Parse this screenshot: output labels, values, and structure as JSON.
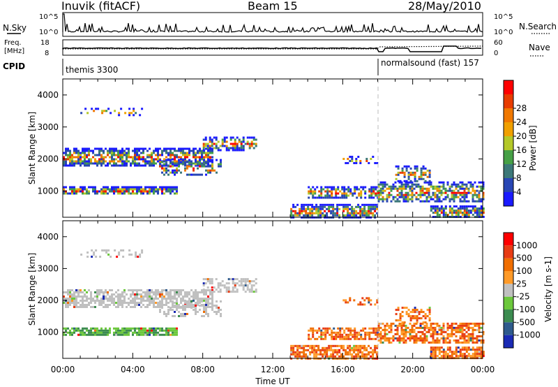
{
  "header": {
    "station": "Inuvik (fitACF)",
    "beam": "Beam 15",
    "date": "28/May/2010"
  },
  "nsky_panel": {
    "label": "N.Sky",
    "ticks": [
      "10^5",
      "10^0"
    ],
    "right_label": "N.Search",
    "right_ticks": [
      "10^5",
      "10^0"
    ]
  },
  "freq_panel": {
    "label_line1": "Freq.",
    "label_line2": "[MHz]",
    "ticks": [
      "18",
      "8"
    ],
    "right_label": "Nave",
    "right_ticks": [
      "60",
      "0"
    ]
  },
  "cpid_panel": {
    "label": "CPID",
    "segments": [
      {
        "text": "themis 3300",
        "start_hour": 0
      },
      {
        "text": "normalsound (fast) 157",
        "start_hour": 18
      }
    ]
  },
  "chart_data": [
    {
      "type": "heatmap",
      "name": "power-panel",
      "xlabel": "",
      "ylabel": "Slant Range [km]",
      "xlim": [
        0,
        24
      ],
      "ylim": [
        180,
        4500
      ],
      "yticks": [
        1000,
        2000,
        3000,
        4000
      ],
      "colorbar": {
        "label": "Power [dB]",
        "ticks": [
          "4",
          "8",
          "12",
          "16",
          "20",
          "24",
          "28"
        ],
        "colors": [
          "#1a1aff",
          "#2846b4",
          "#3c7878",
          "#46a046",
          "#b4c828",
          "#f0a000",
          "#f07800",
          "#e83c00",
          "#ff0000"
        ]
      }
    },
    {
      "type": "heatmap",
      "name": "velocity-panel",
      "xlabel": "Time UT",
      "ylabel": "Slant Range [km]",
      "xlim": [
        0,
        24
      ],
      "ylim": [
        180,
        4500
      ],
      "yticks": [
        1000,
        2000,
        3000,
        4000
      ],
      "xticks": [
        "00:00",
        "04:00",
        "08:00",
        "12:00",
        "16:00",
        "20:00",
        "00:00"
      ],
      "colorbar": {
        "label": "Velocity [m s-1]",
        "ticks": [
          "1000",
          "500",
          "100",
          "25",
          "-25",
          "-100",
          "-500",
          "-1000"
        ],
        "colors": [
          "#1a2ab4",
          "#2e5a8c",
          "#3c8c50",
          "#6cc83c",
          "#c0c0c0",
          "#ff9a28",
          "#f06e00",
          "#e83c14",
          "#ff0000"
        ]
      }
    }
  ]
}
